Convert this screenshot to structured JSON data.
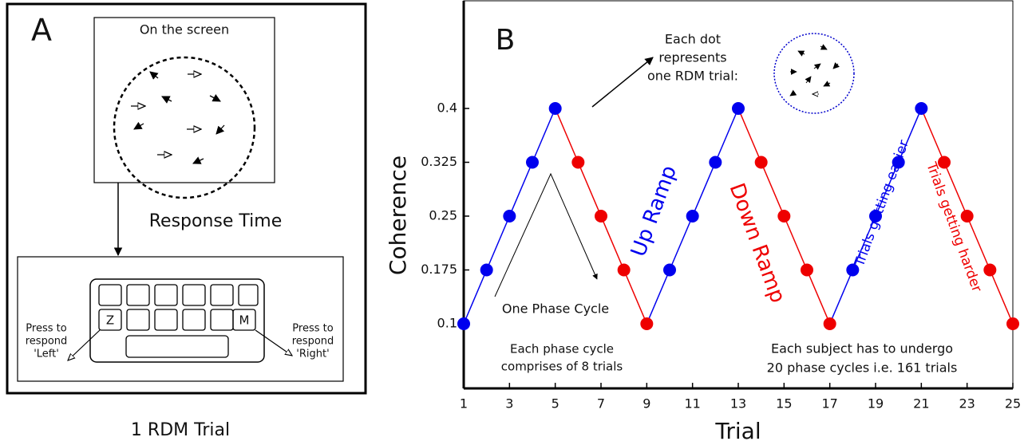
{
  "panel_a": {
    "label": "A",
    "screen_title": "On the screen",
    "arrow_label": "Response Time",
    "keys": {
      "left": "Z",
      "right": "M"
    },
    "left_text": [
      "Press to",
      "respond",
      "'Left'"
    ],
    "right_text": [
      "Press to",
      "respond",
      "'Right'"
    ],
    "caption": "1 RDM Trial"
  },
  "chart_data": {
    "type": "line",
    "panel_label": "B",
    "xlabel": "Trial",
    "ylabel": "Coherence",
    "x": [
      1,
      2,
      3,
      4,
      5,
      6,
      7,
      8,
      9,
      10,
      11,
      12,
      13,
      14,
      15,
      16,
      17,
      18,
      19,
      20,
      21,
      22,
      23,
      24,
      25
    ],
    "values": [
      0.1,
      0.175,
      0.25,
      0.325,
      0.4,
      0.325,
      0.25,
      0.175,
      0.1,
      0.175,
      0.25,
      0.325,
      0.4,
      0.325,
      0.25,
      0.175,
      0.1,
      0.175,
      0.25,
      0.325,
      0.4,
      0.325,
      0.25,
      0.175,
      0.1
    ],
    "point_colors": [
      "#0000ee",
      "#0000ee",
      "#0000ee",
      "#0000ee",
      "#0000ee",
      "#ee0000",
      "#ee0000",
      "#ee0000",
      "#ee0000",
      "#0000ee",
      "#0000ee",
      "#0000ee",
      "#0000ee",
      "#ee0000",
      "#ee0000",
      "#ee0000",
      "#ee0000",
      "#0000ee",
      "#0000ee",
      "#0000ee",
      "#0000ee",
      "#ee0000",
      "#ee0000",
      "#ee0000",
      "#ee0000"
    ],
    "xlim": [
      1,
      25
    ],
    "xticks": [
      1,
      3,
      5,
      7,
      9,
      11,
      13,
      15,
      17,
      19,
      21,
      23,
      25
    ],
    "ylim": [
      0.01,
      0.55
    ],
    "yticks": [
      0.1,
      0.175,
      0.25,
      0.325,
      0.4
    ],
    "annotations": {
      "dot_note": [
        "Each dot",
        "represents",
        "one RDM trial:"
      ],
      "up_ramp": "Up Ramp",
      "down_ramp": "Down Ramp",
      "easier": "Trials getting easier",
      "harder": "Trials getting harder",
      "phase_cycle": "One Phase Cycle",
      "phase_note": [
        "Each phase cycle",
        "comprises of 8 trials"
      ],
      "subject_note": [
        "Each subject has to undergo",
        "20 phase cycles i.e. 161 trials"
      ]
    }
  }
}
